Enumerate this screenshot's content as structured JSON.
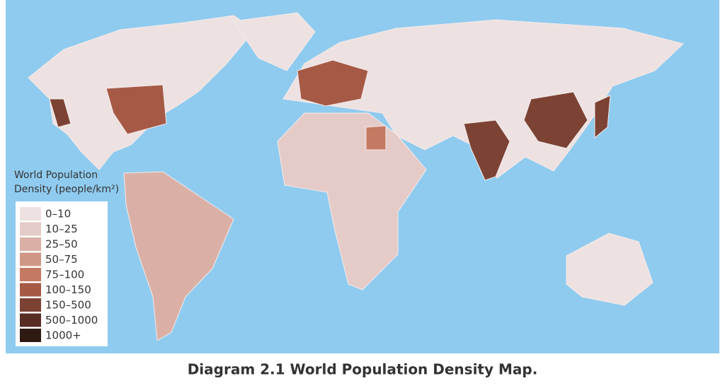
{
  "legend": {
    "title": [
      "World Population",
      "Density (people/km²)"
    ],
    "items": [
      {
        "label": "0–10",
        "color": "#ede2e1"
      },
      {
        "label": "10–25",
        "color": "#e5cbc8"
      },
      {
        "label": "25–50",
        "color": "#dab0a6"
      },
      {
        "label": "50–75",
        "color": "#cf9886"
      },
      {
        "label": "75–100",
        "color": "#c47962"
      },
      {
        "label": "100–150",
        "color": "#a65a46"
      },
      {
        "label": "150–500",
        "color": "#7c4234"
      },
      {
        "label": "500–1000",
        "color": "#582d24"
      },
      {
        "label": "1000+",
        "color": "#2d1a13"
      }
    ]
  },
  "caption": "Diagram 2.1 World Population Density Map."
}
